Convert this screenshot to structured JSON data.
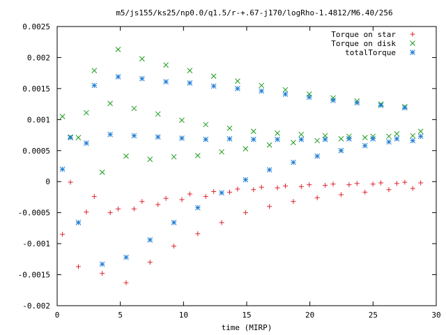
{
  "chart_data": {
    "type": "scatter",
    "title": "m5/js155/ks25/np0.0/q1.5/r-+.67-j170/logRho-1.4812/M6.40/256",
    "xlabel": "time (MIRP)",
    "ylabel": "",
    "xlim": [
      0,
      30
    ],
    "ylim": [
      -0.002,
      0.0025
    ],
    "xticks": [
      0,
      5,
      10,
      15,
      20,
      25,
      30
    ],
    "xtick_labels": [
      "0",
      "5",
      "10",
      "15",
      "20",
      "25",
      "30"
    ],
    "yticks": [
      -0.002,
      -0.0015,
      -0.001,
      -0.0005,
      0,
      0.0005,
      0.001,
      0.0015,
      0.002,
      0.0025
    ],
    "ytick_labels": [
      "-0.002",
      "-0.0015",
      "-0.001",
      "-0.0005",
      "0",
      "0.0005",
      "0.001",
      "0.0015",
      "0.002",
      "0.0025"
    ],
    "grid": false,
    "legend_position": "top-right",
    "x": [
      0.42,
      1.05,
      1.68,
      2.31,
      2.94,
      3.57,
      4.2,
      4.83,
      5.46,
      6.09,
      6.72,
      7.35,
      7.98,
      8.61,
      9.24,
      9.87,
      10.5,
      11.13,
      11.76,
      12.39,
      13.02,
      13.65,
      14.28,
      14.91,
      15.54,
      16.17,
      16.8,
      17.43,
      18.06,
      18.69,
      19.32,
      19.95,
      20.58,
      21.21,
      21.84,
      22.47,
      23.1,
      23.73,
      24.36,
      24.99,
      25.62,
      26.25,
      26.88,
      27.51,
      28.14,
      28.77
    ],
    "series": [
      {
        "name": "Torque on star",
        "color": "#e0202a",
        "marker": "plus",
        "values": [
          -0.00085,
          -1e-05,
          -0.00137,
          -0.00049,
          -0.00024,
          -0.00148,
          -0.0005,
          -0.00044,
          -0.00163,
          -0.00044,
          -0.00032,
          -0.0013,
          -0.00037,
          -0.00027,
          -0.00104,
          -0.00029,
          -0.0002,
          -0.00084,
          -0.00024,
          -0.00016,
          -0.00066,
          -0.00017,
          -0.00012,
          -0.0005,
          -0.00013,
          -9e-05,
          -0.0004,
          -0.0001,
          -7e-05,
          -0.00032,
          -8e-05,
          -5e-05,
          -0.00026,
          -6e-05,
          -4e-05,
          -0.00021,
          -5e-05,
          -3e-05,
          -0.00017,
          -4e-05,
          -2e-05,
          -0.00013,
          -3e-05,
          -1e-05,
          -0.00011,
          -2e-05
        ]
      },
      {
        "name": "Torque on disk",
        "color": "#1a9a1a",
        "marker": "x",
        "values": [
          0.00105,
          0.00072,
          0.00071,
          0.00111,
          0.00179,
          0.00015,
          0.00126,
          0.00213,
          0.00041,
          0.00118,
          0.00198,
          0.00036,
          0.00109,
          0.00188,
          0.0004,
          0.00099,
          0.00179,
          0.00042,
          0.00092,
          0.0017,
          0.00048,
          0.00086,
          0.00162,
          0.00053,
          0.00081,
          0.00155,
          0.00059,
          0.00078,
          0.00148,
          0.00063,
          0.00076,
          0.00141,
          0.00066,
          0.00074,
          0.00135,
          0.00069,
          0.00073,
          0.0013,
          0.00071,
          0.00073,
          0.00125,
          0.00073,
          0.00077,
          0.00121,
          0.00074,
          0.00081
        ]
      },
      {
        "name": "totalTorque",
        "color": "#1a7ad4",
        "marker": "star",
        "values": [
          0.0002,
          0.00071,
          -0.00066,
          0.00062,
          0.00155,
          -0.00133,
          0.00076,
          0.00169,
          -0.00122,
          0.00074,
          0.00166,
          -0.00094,
          0.00072,
          0.00161,
          -0.00066,
          0.0007,
          0.00159,
          -0.00042,
          0.00068,
          0.00154,
          -0.00018,
          0.00069,
          0.0015,
          3e-05,
          0.00068,
          0.00146,
          0.00019,
          0.00068,
          0.00141,
          0.00031,
          0.00068,
          0.00136,
          0.00041,
          0.00068,
          0.00131,
          0.0005,
          0.00069,
          0.00127,
          0.00058,
          0.00069,
          0.00123,
          0.00064,
          0.00069,
          0.00119,
          0.00066,
          0.00073
        ]
      }
    ]
  }
}
